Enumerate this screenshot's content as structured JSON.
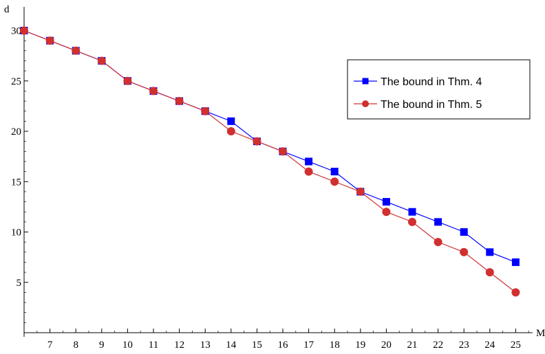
{
  "chart_data": {
    "type": "line",
    "title": "",
    "xlabel": "M",
    "ylabel": "d",
    "xlim": [
      6,
      25.6
    ],
    "ylim": [
      0,
      30
    ],
    "x": [
      6,
      7,
      8,
      9,
      10,
      11,
      12,
      13,
      14,
      15,
      16,
      17,
      18,
      19,
      20,
      21,
      22,
      23,
      24,
      25
    ],
    "xticks": [
      7,
      8,
      9,
      10,
      11,
      12,
      13,
      14,
      15,
      16,
      17,
      18,
      19,
      20,
      21,
      22,
      23,
      24,
      25
    ],
    "yticks": [
      5,
      10,
      15,
      20,
      25,
      30
    ],
    "grid": false,
    "legend_position": "top-right",
    "series": [
      {
        "name": "The bound in Thm. 4",
        "color": "#0000ff",
        "marker": "square",
        "values": [
          30,
          29,
          28,
          27,
          25,
          24,
          23,
          22,
          21,
          19,
          18,
          17,
          16,
          14,
          13,
          12,
          11,
          10,
          8,
          7
        ]
      },
      {
        "name": "The bound in Thm. 5",
        "color": "#d03030",
        "marker": "circle",
        "values": [
          30,
          29,
          28,
          27,
          25,
          24,
          23,
          22,
          20,
          19,
          18,
          16,
          15,
          14,
          12,
          11,
          9,
          8,
          6,
          4
        ]
      }
    ]
  }
}
